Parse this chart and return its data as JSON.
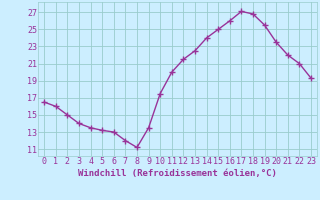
{
  "x": [
    0,
    1,
    2,
    3,
    4,
    5,
    6,
    7,
    8,
    9,
    10,
    11,
    12,
    13,
    14,
    15,
    16,
    17,
    18,
    19,
    20,
    21,
    22,
    23
  ],
  "y": [
    16.5,
    16.0,
    15.0,
    14.0,
    13.5,
    13.2,
    13.0,
    12.0,
    11.2,
    13.5,
    17.5,
    20.0,
    21.5,
    22.5,
    24.0,
    25.0,
    26.0,
    27.1,
    26.8,
    25.5,
    23.5,
    22.0,
    21.0,
    19.3
  ],
  "line_color": "#993399",
  "marker": "+",
  "marker_size": 4,
  "linewidth": 1.0,
  "background_color": "#cceeff",
  "grid_color": "#99cccc",
  "xlabel": "Windchill (Refroidissement éolien,°C)",
  "xlabel_color": "#993399",
  "tick_color": "#993399",
  "ylabel_ticks": [
    11,
    13,
    15,
    17,
    19,
    21,
    23,
    25,
    27
  ],
  "xlim": [
    -0.5,
    23.5
  ],
  "ylim": [
    10.2,
    28.2
  ],
  "xticks": [
    0,
    1,
    2,
    3,
    4,
    5,
    6,
    7,
    8,
    9,
    10,
    11,
    12,
    13,
    14,
    15,
    16,
    17,
    18,
    19,
    20,
    21,
    22,
    23
  ],
  "font_size": 6.0,
  "xlabel_fontsize": 6.5
}
